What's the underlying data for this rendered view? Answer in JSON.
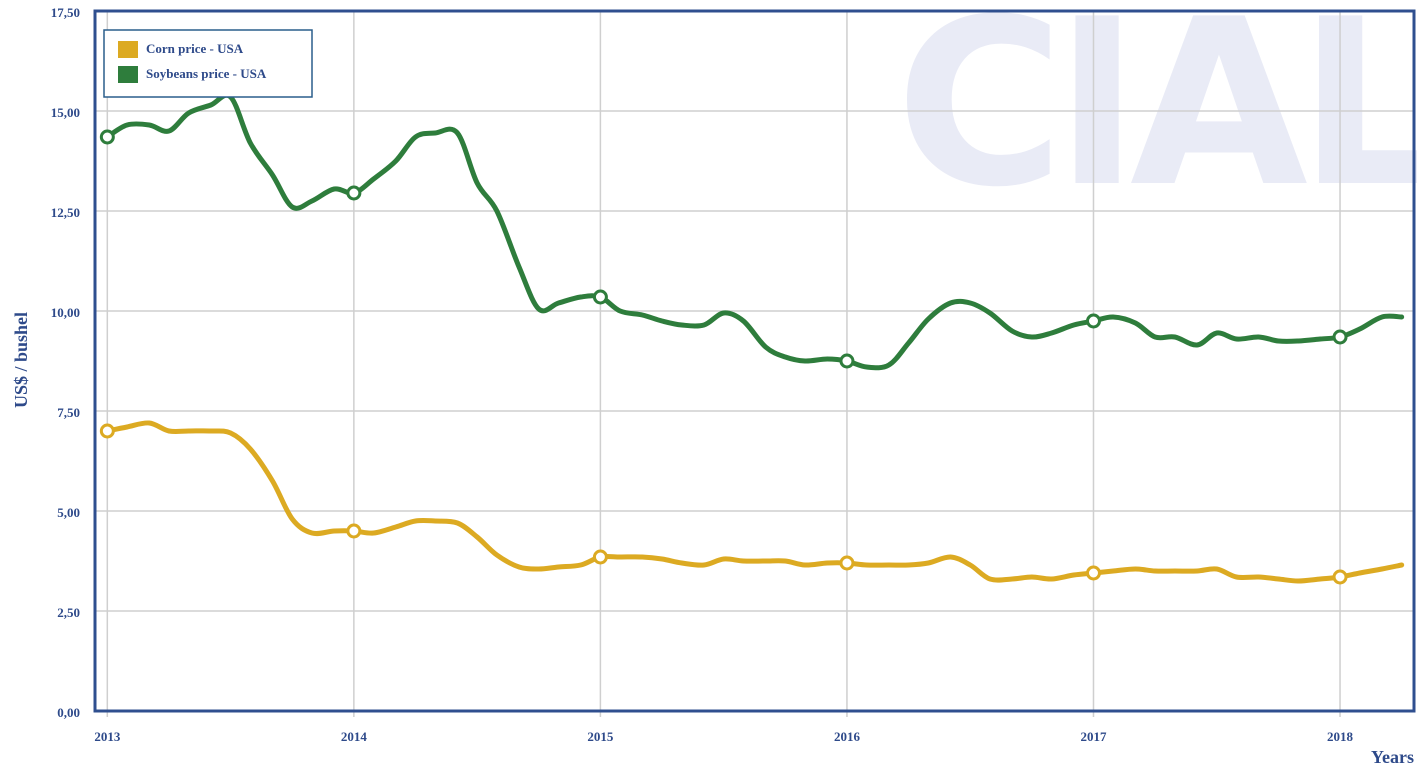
{
  "chart_data": {
    "type": "line",
    "watermark": "CIAL",
    "y_label": "US$ / bushel",
    "x_label": "Years",
    "xlim": [
      2012.95,
      2018.3
    ],
    "xticks": [
      2013,
      2014,
      2015,
      2016,
      2017,
      2018
    ],
    "ylim": [
      0,
      17.5
    ],
    "yticks": [
      {
        "value": 0,
        "label": "0,00"
      },
      {
        "value": 2.5,
        "label": "2,50"
      },
      {
        "value": 5,
        "label": "5,00"
      },
      {
        "value": 7.5,
        "label": "7,50"
      },
      {
        "value": 10,
        "label": "10,00"
      },
      {
        "value": 12.5,
        "label": "12,50"
      },
      {
        "value": 15,
        "label": "15,00"
      },
      {
        "value": 17.5,
        "label": "17,50"
      }
    ],
    "grid": true,
    "legend": "top-left",
    "x": [
      2013,
      2013.08,
      2013.17,
      2013.25,
      2013.33,
      2013.42,
      2013.5,
      2013.58,
      2013.67,
      2013.75,
      2013.83,
      2013.92,
      2014,
      2014.08,
      2014.17,
      2014.25,
      2014.33,
      2014.42,
      2014.5,
      2014.58,
      2014.67,
      2014.75,
      2014.83,
      2014.92,
      2015,
      2015.08,
      2015.17,
      2015.25,
      2015.33,
      2015.42,
      2015.5,
      2015.58,
      2015.67,
      2015.75,
      2015.83,
      2015.92,
      2016,
      2016.08,
      2016.17,
      2016.25,
      2016.33,
      2016.42,
      2016.5,
      2016.58,
      2016.67,
      2016.75,
      2016.83,
      2016.92,
      2017,
      2017.08,
      2017.17,
      2017.25,
      2017.33,
      2017.42,
      2017.5,
      2017.58,
      2017.67,
      2017.75,
      2017.83,
      2017.92,
      2018,
      2018.08,
      2018.17,
      2018.25
    ],
    "series": [
      {
        "name": "Corn price - USA",
        "color": "#dcaa22",
        "values": [
          7.0,
          7.1,
          7.2,
          7.0,
          7.0,
          7.0,
          6.95,
          6.55,
          5.75,
          4.8,
          4.45,
          4.5,
          4.5,
          4.45,
          4.6,
          4.75,
          4.75,
          4.7,
          4.35,
          3.9,
          3.6,
          3.55,
          3.6,
          3.65,
          3.85,
          3.85,
          3.85,
          3.8,
          3.7,
          3.65,
          3.8,
          3.75,
          3.75,
          3.75,
          3.65,
          3.7,
          3.7,
          3.65,
          3.65,
          3.65,
          3.7,
          3.85,
          3.65,
          3.3,
          3.3,
          3.35,
          3.3,
          3.4,
          3.45,
          3.5,
          3.55,
          3.5,
          3.5,
          3.5,
          3.55,
          3.35,
          3.35,
          3.3,
          3.25,
          3.3,
          3.35,
          3.45,
          3.55,
          3.65
        ]
      },
      {
        "name": "Soybeans price - USA",
        "color": "#2e7d3c",
        "values": [
          14.35,
          14.65,
          14.65,
          14.5,
          14.95,
          15.15,
          15.35,
          14.2,
          13.4,
          12.6,
          12.75,
          13.05,
          12.95,
          13.3,
          13.75,
          14.35,
          14.45,
          14.45,
          13.2,
          12.5,
          11.1,
          10.05,
          10.2,
          10.35,
          10.35,
          10.0,
          9.9,
          9.75,
          9.65,
          9.65,
          9.95,
          9.75,
          9.1,
          8.85,
          8.75,
          8.8,
          8.75,
          8.6,
          8.65,
          9.2,
          9.8,
          10.2,
          10.2,
          9.95,
          9.5,
          9.35,
          9.45,
          9.65,
          9.75,
          9.85,
          9.7,
          9.35,
          9.35,
          9.15,
          9.45,
          9.3,
          9.35,
          9.25,
          9.25,
          9.3,
          9.35,
          9.55,
          9.85,
          9.85
        ]
      }
    ]
  }
}
